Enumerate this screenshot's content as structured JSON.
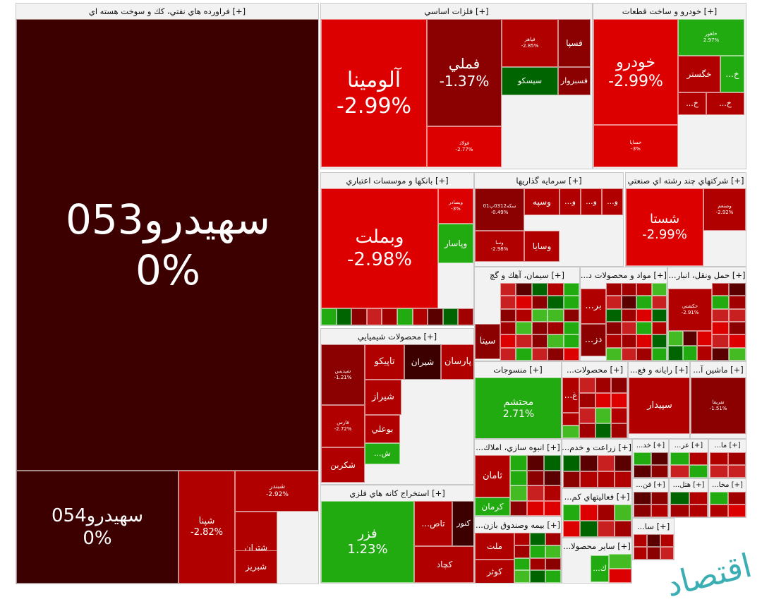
{
  "colors": {
    "deep": "#3d0000",
    "dark": "#8b0000",
    "red": "#b00000",
    "bright": "#dd0000",
    "green": "#22aa11",
    "dgreen": "#006400",
    "lgreen": "#44bb22",
    "rose": "#c82020"
  },
  "chart_data": {
    "type": "treemap",
    "title": "",
    "sectors": [
      {
        "name": "[+] فراورده هاي نفتي، كك و سوخت هسته اي",
        "tiles": [
          {
            "name": "سهيدرو053",
            "change": "0%",
            "color": "deep"
          },
          {
            "name": "سهيدرو054",
            "change": "0%",
            "color": "deep"
          },
          {
            "name": "شپنا",
            "change": "-2.82%",
            "color": "red"
          },
          {
            "name": "شبندر",
            "change": "-2.92%",
            "color": "red"
          },
          {
            "name": "شتران",
            "change": "",
            "color": "red"
          },
          {
            "name": "شبريز",
            "change": "",
            "color": "red"
          }
        ]
      },
      {
        "name": "[+] فلزات اساسي",
        "tiles": [
          {
            "name": "آلومينا",
            "change": "-2.99%",
            "color": "bright"
          },
          {
            "name": "فملي",
            "change": "-1.37%",
            "color": "dark"
          },
          {
            "name": "فولاد",
            "change": "-2.77%",
            "color": "bright"
          },
          {
            "name": "فپاهر",
            "change": "-2.85%",
            "color": "red"
          },
          {
            "name": "فسپا",
            "change": "",
            "color": "dark"
          },
          {
            "name": "سيسكو",
            "change": "",
            "color": "dgreen"
          },
          {
            "name": "فسبزوار",
            "change": "",
            "color": "dark"
          }
        ]
      },
      {
        "name": "[+] خودرو و ساخت قطعات",
        "tiles": [
          {
            "name": "خودرو",
            "change": "-2.99%",
            "color": "bright"
          },
          {
            "name": "خسايا",
            "change": "-3%",
            "color": "bright"
          },
          {
            "name": "خاهور",
            "change": "2.97%",
            "color": "green"
          },
          {
            "name": "خگستر",
            "change": "",
            "color": "red"
          },
          {
            "name": "خ...",
            "change": "",
            "color": "green"
          },
          {
            "name": "خ...",
            "change": "",
            "color": "red"
          },
          {
            "name": "خ...",
            "change": "",
            "color": "red"
          }
        ]
      },
      {
        "name": "[+] بانكها و موسسات اعتباري",
        "tiles": [
          {
            "name": "وبملت",
            "change": "-2.98%",
            "color": "bright"
          },
          {
            "name": "وبصادر",
            "change": "-3%",
            "color": "bright"
          },
          {
            "name": "وپاسار",
            "change": "",
            "color": "green"
          }
        ]
      },
      {
        "name": "[+] سرمايه گذاريها",
        "tiles": [
          {
            "name": "سكه0312پ01",
            "change": "-0.49%",
            "color": "dark"
          },
          {
            "name": "وسپه",
            "change": "",
            "color": "red"
          },
          {
            "name": "و...",
            "change": "",
            "color": "red"
          },
          {
            "name": "و...",
            "change": "",
            "color": "red"
          },
          {
            "name": "و...",
            "change": "",
            "color": "red"
          },
          {
            "name": "وسا",
            "change": "-2.98%",
            "color": "red"
          },
          {
            "name": "وسايا",
            "change": "",
            "color": "red"
          }
        ]
      },
      {
        "name": "[+] شركتهاي چند رشته اي صنعتي",
        "tiles": [
          {
            "name": "شستا",
            "change": "-2.99%",
            "color": "bright"
          },
          {
            "name": "وصنعم",
            "change": "-2.92%",
            "color": "red"
          }
        ]
      },
      {
        "name": "[+] سيمان، آهك و گچ",
        "tiles": [
          {
            "name": "سيتا",
            "change": "",
            "color": "dark"
          }
        ]
      },
      {
        "name": "[+] مواد و محصولات د...",
        "tiles": [
          {
            "name": "بر...",
            "change": "",
            "color": "red"
          },
          {
            "name": "دز...",
            "change": "",
            "color": "dark"
          }
        ]
      },
      {
        "name": "[+] حمل ونقل، انبار...",
        "tiles": [
          {
            "name": "حكشتي",
            "change": "-2.91%",
            "color": "red"
          }
        ]
      },
      {
        "name": "[+] محصولات شيميايي",
        "tiles": [
          {
            "name": "شپديس",
            "change": "-1.21%",
            "color": "dark"
          },
          {
            "name": "تاپيكو",
            "change": "",
            "color": "red"
          },
          {
            "name": "شيران",
            "change": "",
            "color": "deep"
          },
          {
            "name": "پارسان",
            "change": "",
            "color": "red"
          },
          {
            "name": "فارس",
            "change": "-2.72%",
            "color": "red"
          },
          {
            "name": "شيراز",
            "change": "",
            "color": "red"
          },
          {
            "name": "بوعلي",
            "change": "",
            "color": "red"
          },
          {
            "name": "ش...",
            "change": "",
            "color": "green"
          },
          {
            "name": "شكربن",
            "change": "",
            "color": "red"
          }
        ]
      },
      {
        "name": "[+] منسوجات",
        "tiles": [
          {
            "name": "محتشم",
            "change": "2.71%",
            "color": "green"
          }
        ]
      },
      {
        "name": "[+] محصولات...",
        "tiles": [
          {
            "name": "غ...",
            "change": "",
            "color": "red"
          }
        ]
      },
      {
        "name": "[+] رايانه و فع...",
        "tiles": [
          {
            "name": "سپيدار",
            "change": "",
            "color": "red"
          }
        ]
      },
      {
        "name": "[+] ماشين آ...",
        "tiles": [
          {
            "name": "تفريقا",
            "change": "-1.51%",
            "color": "dark"
          }
        ]
      },
      {
        "name": "[+] انبوه سازي، املاك...",
        "tiles": [
          {
            "name": "ثامان",
            "change": "",
            "color": "red"
          },
          {
            "name": "كرمان",
            "change": "",
            "color": "green"
          }
        ]
      },
      {
        "name": "[+] زراعت و خدم...",
        "tiles": []
      },
      {
        "name": "[+] خد...",
        "tiles": []
      },
      {
        "name": "[+] عر...",
        "tiles": []
      },
      {
        "name": "[+] ما...",
        "tiles": []
      },
      {
        "name": "[+] فن...",
        "tiles": []
      },
      {
        "name": "[+] هتل...",
        "tiles": []
      },
      {
        "name": "[+] مخا...",
        "tiles": []
      },
      {
        "name": "[+] فعاليتهاي كم...",
        "tiles": []
      },
      {
        "name": "[+] سا...",
        "tiles": []
      },
      {
        "name": "[+] استخراج كانه هاي فلزي",
        "tiles": [
          {
            "name": "فزر",
            "change": "1.23%",
            "color": "green"
          },
          {
            "name": "تاص...",
            "change": "",
            "color": "red"
          },
          {
            "name": "كنور",
            "change": "",
            "color": "deep"
          },
          {
            "name": "كچاد",
            "change": "",
            "color": "red"
          }
        ]
      },
      {
        "name": "[+] بيمه وصندوق بازن...",
        "tiles": [
          {
            "name": "ملت",
            "change": "",
            "color": "red"
          },
          {
            "name": "كوثر",
            "change": "",
            "color": "red"
          }
        ]
      },
      {
        "name": "[+] ساير محصولا...",
        "tiles": [
          {
            "name": "ك...",
            "change": "",
            "color": "green"
          }
        ]
      }
    ]
  },
  "watermark": "اقتصاد"
}
